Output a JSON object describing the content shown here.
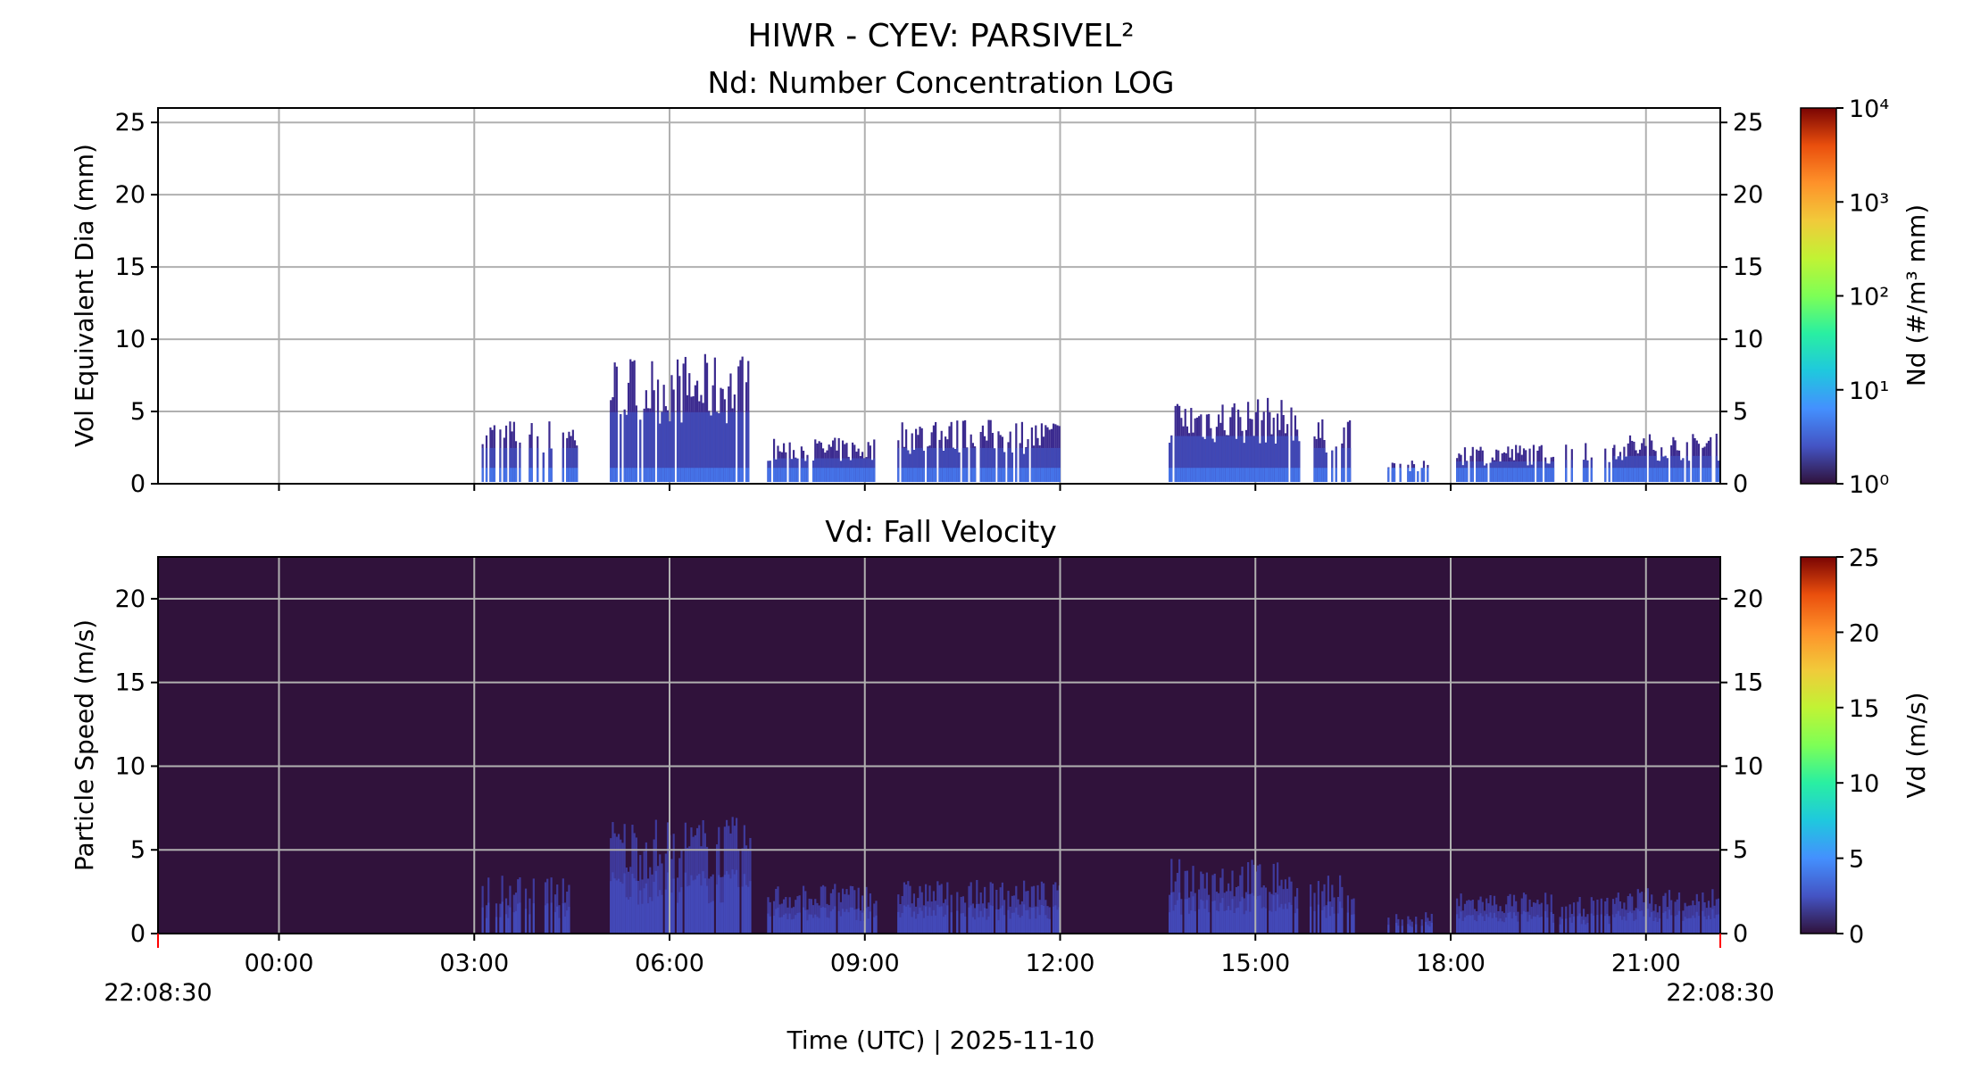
{
  "figure": {
    "title": "HIWR - CYEV: PARSIVEL²",
    "xlabel": "Time (UTC)  |  2025-11-10",
    "start_label": "22:08:30",
    "end_label": "22:08:30"
  },
  "chart_data": [
    {
      "type": "heatmap",
      "title": "Nd: Number Concentration LOG",
      "xlabel": "Time (UTC)  |  2025-11-10",
      "ylabel": "Vol Equivalent Dia (mm)",
      "x_axis": {
        "range": [
          "2025-11-09 22:08:30",
          "2025-11-10 22:08:30"
        ],
        "ticks": [
          "00:00",
          "03:00",
          "06:00",
          "09:00",
          "12:00",
          "15:00",
          "18:00",
          "21:00"
        ]
      },
      "ylim": [
        0,
        26
      ],
      "yticks": [
        0,
        5,
        10,
        15,
        20,
        25
      ],
      "grid": true,
      "background": "#ffffff",
      "colorbar": {
        "label": "Nd (#/m³ mm)",
        "scale": "log",
        "range": [
          1,
          10000
        ],
        "ticks": [
          "10⁰",
          "10¹",
          "10²",
          "10³",
          "10⁴"
        ],
        "colormap": "turbo"
      },
      "precip_periods": [
        {
          "start": "03:05",
          "end": "04:35",
          "max_d": 4.5,
          "gappy": true
        },
        {
          "start": "05:05",
          "end": "07:15",
          "max_d": 9.0,
          "gappy": false
        },
        {
          "start": "07:30",
          "end": "09:10",
          "max_d": 3.2,
          "gappy": false
        },
        {
          "start": "09:30",
          "end": "12:00",
          "max_d": 4.5,
          "gappy": false
        },
        {
          "start": "13:40",
          "end": "15:40",
          "max_d": 6.0,
          "gappy": false
        },
        {
          "start": "15:50",
          "end": "16:30",
          "max_d": 4.5,
          "gappy": true
        },
        {
          "start": "17:00",
          "end": "17:45",
          "max_d": 1.6,
          "gappy": true
        },
        {
          "start": "18:05",
          "end": "19:35",
          "max_d": 2.8,
          "gappy": false
        },
        {
          "start": "19:40",
          "end": "20:30",
          "max_d": 3.0,
          "gappy": true
        },
        {
          "start": "20:30",
          "end": "22:08",
          "max_d": 3.5,
          "gappy": false
        }
      ]
    },
    {
      "type": "heatmap",
      "title": "Vd: Fall Velocity",
      "xlabel": "Time (UTC)  |  2025-11-10",
      "ylabel": "Particle Speed (m/s)",
      "x_axis": {
        "range": [
          "2025-11-09 22:08:30",
          "2025-11-10 22:08:30"
        ],
        "ticks": [
          "00:00",
          "03:00",
          "06:00",
          "09:00",
          "12:00",
          "15:00",
          "18:00",
          "21:00"
        ]
      },
      "ylim": [
        0,
        22.5
      ],
      "yticks": [
        0,
        5,
        10,
        15,
        20
      ],
      "grid": true,
      "background": "#30123b",
      "colorbar": {
        "label": "Vd (m/s)",
        "scale": "linear",
        "range": [
          0,
          25
        ],
        "ticks": [
          "0",
          "5",
          "10",
          "15",
          "20",
          "25"
        ],
        "colormap": "turbo"
      },
      "precip_periods": [
        {
          "start": "03:05",
          "end": "04:35",
          "max_v": 3.6,
          "gappy": true
        },
        {
          "start": "05:05",
          "end": "07:15",
          "max_v": 7.0,
          "gappy": false
        },
        {
          "start": "07:30",
          "end": "09:10",
          "max_v": 3.0,
          "gappy": false
        },
        {
          "start": "09:30",
          "end": "12:00",
          "max_v": 3.2,
          "gappy": false
        },
        {
          "start": "13:40",
          "end": "15:40",
          "max_v": 4.5,
          "gappy": false
        },
        {
          "start": "15:50",
          "end": "16:30",
          "max_v": 3.5,
          "gappy": true
        },
        {
          "start": "17:00",
          "end": "17:45",
          "max_v": 1.3,
          "gappy": true
        },
        {
          "start": "18:05",
          "end": "19:35",
          "max_v": 2.5,
          "gappy": false
        },
        {
          "start": "19:40",
          "end": "20:30",
          "max_v": 2.2,
          "gappy": true
        },
        {
          "start": "20:30",
          "end": "22:08",
          "max_v": 2.8,
          "gappy": false
        }
      ]
    }
  ]
}
